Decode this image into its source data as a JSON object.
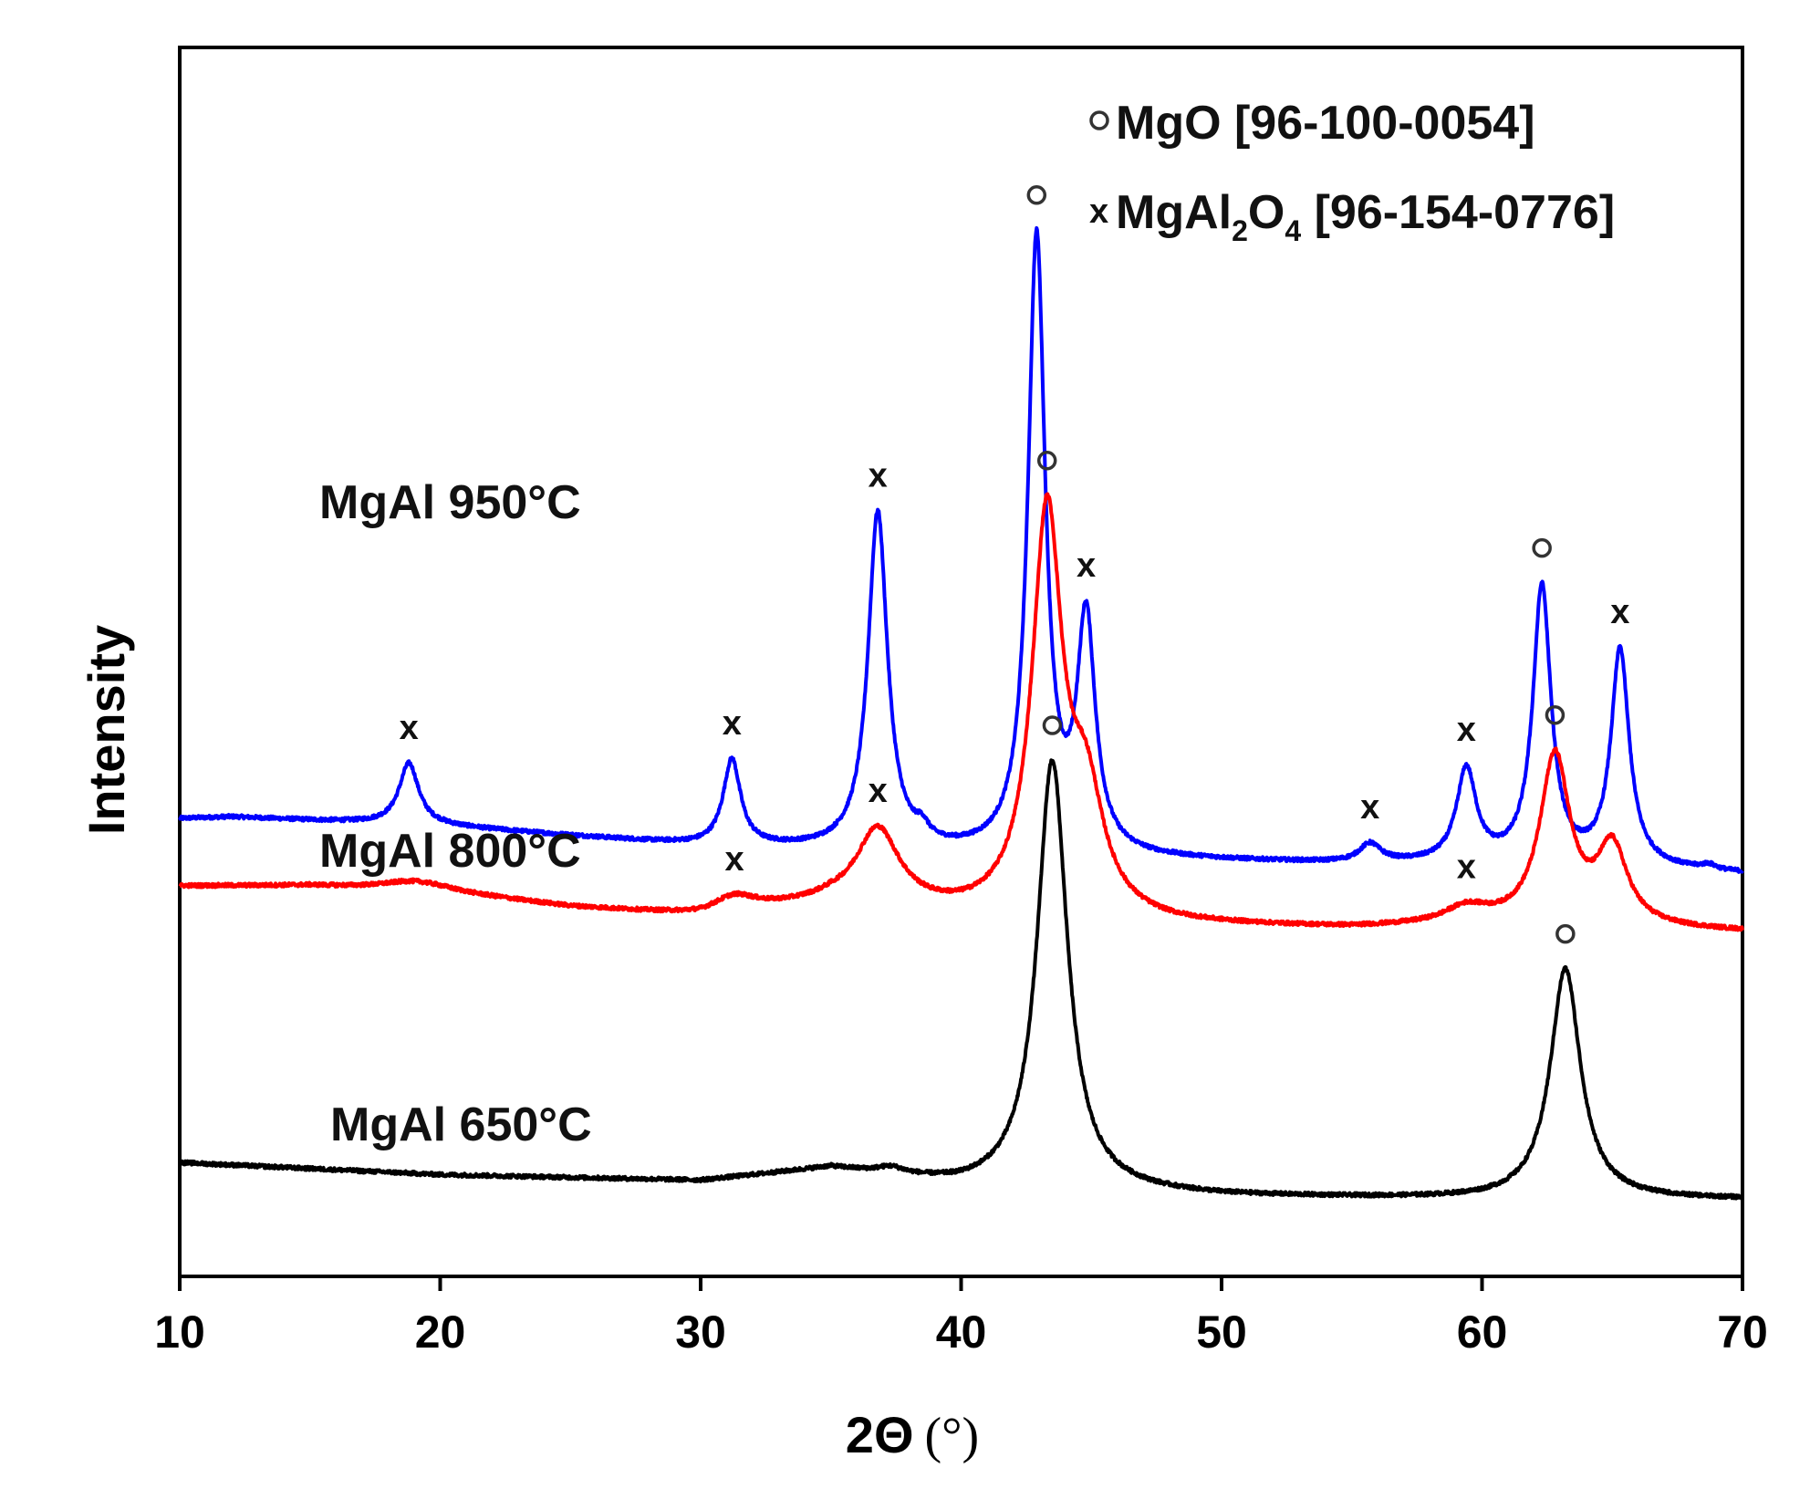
{
  "chart_data": {
    "type": "line",
    "xlabel": {
      "main": "2Θ",
      "unit": "(°)"
    },
    "ylabel": "Intensity",
    "xlim": [
      10,
      70
    ],
    "xticks": [
      10,
      20,
      30,
      40,
      50,
      60,
      70
    ],
    "legend": {
      "position": "top-right",
      "entries": [
        {
          "marker": "o",
          "text": "MgO [96-100-0054]"
        },
        {
          "marker": "x",
          "text_parts": [
            "MgAl",
            "2",
            "O",
            "4",
            " [96-154-0776]"
          ]
        }
      ]
    },
    "series": [
      {
        "name": "MgAl 950°C",
        "color": "#0000ff",
        "baseline": [
          [
            10,
            0.24
          ],
          [
            12,
            0.245
          ],
          [
            20,
            0.215
          ],
          [
            30,
            0.15
          ],
          [
            40,
            0.12
          ],
          [
            50,
            0.1
          ],
          [
            55,
            0.09
          ],
          [
            60,
            0.09
          ],
          [
            65,
            0.08
          ],
          [
            70,
            0.06
          ]
        ],
        "peaks": [
          {
            "x": 18.8,
            "height": 0.2,
            "width": 0.45,
            "marker": "x"
          },
          {
            "x": 31.2,
            "height": 0.28,
            "width": 0.4,
            "marker": "x"
          },
          {
            "x": 36.8,
            "height": 1.1,
            "width": 0.45,
            "marker": "x"
          },
          {
            "x": 38.5,
            "height": 0.04,
            "width": 0.3
          },
          {
            "x": 42.9,
            "height": 2.0,
            "width": 0.4,
            "marker": "o"
          },
          {
            "x": 44.8,
            "height": 0.75,
            "width": 0.42,
            "marker": "x"
          },
          {
            "x": 55.7,
            "height": 0.06,
            "width": 0.5,
            "marker": "x"
          },
          {
            "x": 59.4,
            "height": 0.3,
            "width": 0.45,
            "marker": "x"
          },
          {
            "x": 62.3,
            "height": 0.9,
            "width": 0.42,
            "marker": "o"
          },
          {
            "x": 65.3,
            "height": 0.7,
            "width": 0.42,
            "marker": "x"
          },
          {
            "x": 68.7,
            "height": 0.015,
            "width": 0.3
          }
        ]
      },
      {
        "name": "MgAl 800°C",
        "color": "#ff0000",
        "baseline": [
          [
            10,
            0.02
          ],
          [
            15,
            0.02
          ],
          [
            20,
            0.0
          ],
          [
            25,
            -0.05
          ],
          [
            30,
            -0.08
          ],
          [
            35,
            -0.04
          ],
          [
            40,
            -0.08
          ],
          [
            48,
            -0.11
          ],
          [
            55,
            -0.12
          ],
          [
            60,
            -0.11
          ],
          [
            65,
            -0.12
          ],
          [
            70,
            -0.13
          ]
        ],
        "peaks": [
          {
            "x": 19,
            "height": 0.03,
            "width": 1.5
          },
          {
            "x": 31.3,
            "height": 0.05,
            "width": 1.0,
            "marker": "x"
          },
          {
            "x": 36.8,
            "height": 0.25,
            "width": 1.0,
            "marker": "x"
          },
          {
            "x": 43.3,
            "height": 1.3,
            "width": 0.7,
            "marker": "o"
          },
          {
            "x": 44.8,
            "height": 0.35,
            "width": 0.8
          },
          {
            "x": 59.4,
            "height": 0.05,
            "width": 1.0,
            "marker": "x"
          },
          {
            "x": 62.8,
            "height": 0.55,
            "width": 0.7,
            "marker": "o"
          },
          {
            "x": 65.0,
            "height": 0.25,
            "width": 0.7
          }
        ]
      },
      {
        "name": "MgAl 650°C",
        "color": "#000000",
        "baseline": [
          [
            10,
            -0.88
          ],
          [
            15,
            -0.9
          ],
          [
            20,
            -0.92
          ],
          [
            30,
            -0.94
          ],
          [
            35,
            -0.9
          ],
          [
            40,
            -0.96
          ],
          [
            50,
            -0.99
          ],
          [
            60,
            -1.0
          ],
          [
            70,
            -1.0
          ]
        ],
        "peaks": [
          {
            "x": 37.3,
            "height": 0.02,
            "width": 0.6
          },
          {
            "x": 43.5,
            "height": 1.4,
            "width": 0.7,
            "marker": "o"
          },
          {
            "x": 63.2,
            "height": 0.75,
            "width": 0.7,
            "marker": "o"
          }
        ]
      }
    ]
  }
}
